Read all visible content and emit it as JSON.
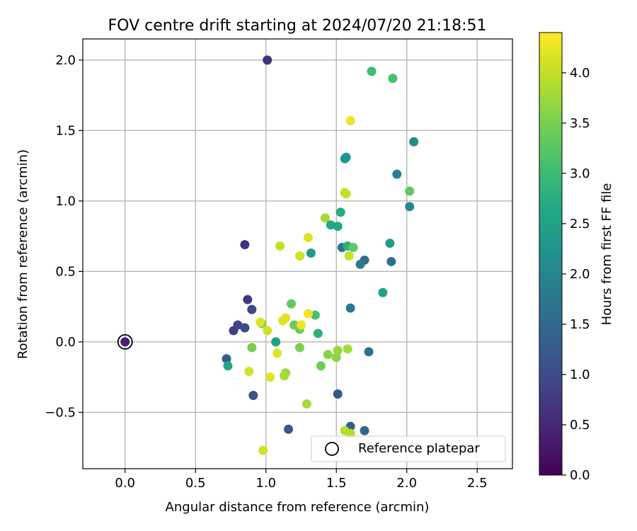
{
  "chart_data": {
    "type": "scatter",
    "title": "FOV centre drift starting at 2024/07/20 21:18:51",
    "xlabel": "Angular distance from reference (arcmin)",
    "ylabel": "Rotation from reference (arcmin)",
    "xlim": [
      -0.3,
      2.75
    ],
    "ylim": [
      -0.9,
      2.15
    ],
    "xticks": [
      0.0,
      0.5,
      1.0,
      1.5,
      2.0,
      2.5
    ],
    "xtick_labels": [
      "0.0",
      "0.5",
      "1.0",
      "1.5",
      "2.0",
      "2.5"
    ],
    "yticks": [
      -0.5,
      0.0,
      0.5,
      1.0,
      1.5,
      2.0
    ],
    "ytick_labels": [
      "−0.5",
      "0.0",
      "0.5",
      "1.0",
      "1.5",
      "2.0"
    ],
    "grid": true,
    "colorbar": {
      "label": "Hours from first FF file",
      "colormap": "viridis",
      "range": [
        0.0,
        4.4
      ],
      "ticks": [
        0.0,
        0.5,
        1.0,
        1.5,
        2.0,
        2.5,
        3.0,
        3.5,
        4.0
      ],
      "tick_labels": [
        "0.0",
        "0.5",
        "1.0",
        "1.5",
        "2.0",
        "2.5",
        "3.0",
        "3.5",
        "4.0"
      ]
    },
    "legend": {
      "placement": "lower right",
      "label": "Reference platepar"
    },
    "reference": {
      "x": 0.0,
      "y": 0.0
    },
    "points": [
      {
        "x": 0.0,
        "y": 0.0,
        "t": 0.4
      },
      {
        "x": 1.01,
        "y": 2.0,
        "t": 0.6
      },
      {
        "x": 0.85,
        "y": 0.69,
        "t": 0.6
      },
      {
        "x": 0.87,
        "y": 0.3,
        "t": 0.7
      },
      {
        "x": 0.9,
        "y": 0.23,
        "t": 0.9
      },
      {
        "x": 0.8,
        "y": 0.12,
        "t": 0.9
      },
      {
        "x": 0.77,
        "y": 0.08,
        "t": 0.8
      },
      {
        "x": 0.85,
        "y": 0.1,
        "t": 1.0
      },
      {
        "x": 0.72,
        "y": -0.12,
        "t": 1.3
      },
      {
        "x": 0.91,
        "y": -0.38,
        "t": 1.1
      },
      {
        "x": 1.16,
        "y": -0.62,
        "t": 1.2
      },
      {
        "x": 1.51,
        "y": -0.37,
        "t": 1.2
      },
      {
        "x": 1.6,
        "y": -0.6,
        "t": 1.3
      },
      {
        "x": 1.7,
        "y": -0.63,
        "t": 1.4
      },
      {
        "x": 1.73,
        "y": -0.07,
        "t": 1.6
      },
      {
        "x": 1.6,
        "y": 0.24,
        "t": 1.8
      },
      {
        "x": 1.54,
        "y": 0.67,
        "t": 1.7
      },
      {
        "x": 1.7,
        "y": 0.58,
        "t": 1.6
      },
      {
        "x": 1.67,
        "y": 0.55,
        "t": 1.8
      },
      {
        "x": 1.89,
        "y": 0.57,
        "t": 1.6
      },
      {
        "x": 2.02,
        "y": 0.96,
        "t": 2.0
      },
      {
        "x": 1.93,
        "y": 1.19,
        "t": 1.9
      },
      {
        "x": 2.05,
        "y": 1.42,
        "t": 2.1
      },
      {
        "x": 1.56,
        "y": 1.3,
        "t": 2.2
      },
      {
        "x": 1.57,
        "y": 1.31,
        "t": 2.3
      },
      {
        "x": 1.88,
        "y": 0.7,
        "t": 2.4
      },
      {
        "x": 1.83,
        "y": 0.35,
        "t": 2.5
      },
      {
        "x": 1.32,
        "y": 0.63,
        "t": 2.4
      },
      {
        "x": 1.46,
        "y": 0.83,
        "t": 2.6
      },
      {
        "x": 1.51,
        "y": 0.82,
        "t": 2.6
      },
      {
        "x": 1.53,
        "y": 0.92,
        "t": 2.7
      },
      {
        "x": 1.58,
        "y": 0.68,
        "t": 2.8
      },
      {
        "x": 1.07,
        "y": 0.0,
        "t": 2.5
      },
      {
        "x": 0.73,
        "y": -0.17,
        "t": 2.6
      },
      {
        "x": 1.37,
        "y": 0.06,
        "t": 2.8
      },
      {
        "x": 1.35,
        "y": 0.19,
        "t": 3.1
      },
      {
        "x": 1.75,
        "y": 1.92,
        "t": 3.0
      },
      {
        "x": 1.9,
        "y": 1.87,
        "t": 3.1
      },
      {
        "x": 2.02,
        "y": 1.07,
        "t": 3.3
      },
      {
        "x": 1.62,
        "y": 0.67,
        "t": 3.3
      },
      {
        "x": 1.18,
        "y": 0.27,
        "t": 3.3
      },
      {
        "x": 1.2,
        "y": 0.12,
        "t": 3.4
      },
      {
        "x": 1.24,
        "y": 0.09,
        "t": 3.4
      },
      {
        "x": 0.97,
        "y": 0.13,
        "t": 3.5
      },
      {
        "x": 0.9,
        "y": -0.04,
        "t": 3.5
      },
      {
        "x": 1.24,
        "y": -0.04,
        "t": 3.5
      },
      {
        "x": 1.39,
        "y": -0.17,
        "t": 3.4
      },
      {
        "x": 1.44,
        "y": -0.09,
        "t": 3.6
      },
      {
        "x": 1.5,
        "y": -0.11,
        "t": 3.6
      },
      {
        "x": 1.51,
        "y": -0.06,
        "t": 3.7
      },
      {
        "x": 1.58,
        "y": -0.05,
        "t": 3.8
      },
      {
        "x": 1.14,
        "y": -0.22,
        "t": 3.7
      },
      {
        "x": 1.13,
        "y": -0.24,
        "t": 3.8
      },
      {
        "x": 1.29,
        "y": -0.44,
        "t": 3.8
      },
      {
        "x": 1.42,
        "y": 0.88,
        "t": 3.8
      },
      {
        "x": 1.56,
        "y": -0.63,
        "t": 3.9
      },
      {
        "x": 1.6,
        "y": -0.65,
        "t": 3.9
      },
      {
        "x": 1.56,
        "y": 1.06,
        "t": 4.0
      },
      {
        "x": 1.57,
        "y": 1.05,
        "t": 4.0
      },
      {
        "x": 1.59,
        "y": 0.61,
        "t": 4.0
      },
      {
        "x": 1.1,
        "y": 0.68,
        "t": 4.0
      },
      {
        "x": 1.24,
        "y": 0.61,
        "t": 4.1
      },
      {
        "x": 1.3,
        "y": 0.74,
        "t": 4.2
      },
      {
        "x": 1.6,
        "y": 1.57,
        "t": 4.3
      },
      {
        "x": 0.96,
        "y": 0.14,
        "t": 4.2
      },
      {
        "x": 1.01,
        "y": 0.08,
        "t": 4.1
      },
      {
        "x": 1.12,
        "y": 0.15,
        "t": 4.2
      },
      {
        "x": 1.14,
        "y": 0.17,
        "t": 4.2
      },
      {
        "x": 1.25,
        "y": 0.12,
        "t": 4.3
      },
      {
        "x": 1.3,
        "y": 0.2,
        "t": 4.3
      },
      {
        "x": 1.08,
        "y": -0.08,
        "t": 4.2
      },
      {
        "x": 0.88,
        "y": -0.21,
        "t": 4.1
      },
      {
        "x": 1.03,
        "y": -0.25,
        "t": 4.2
      },
      {
        "x": 0.98,
        "y": -0.77,
        "t": 4.1
      }
    ]
  }
}
